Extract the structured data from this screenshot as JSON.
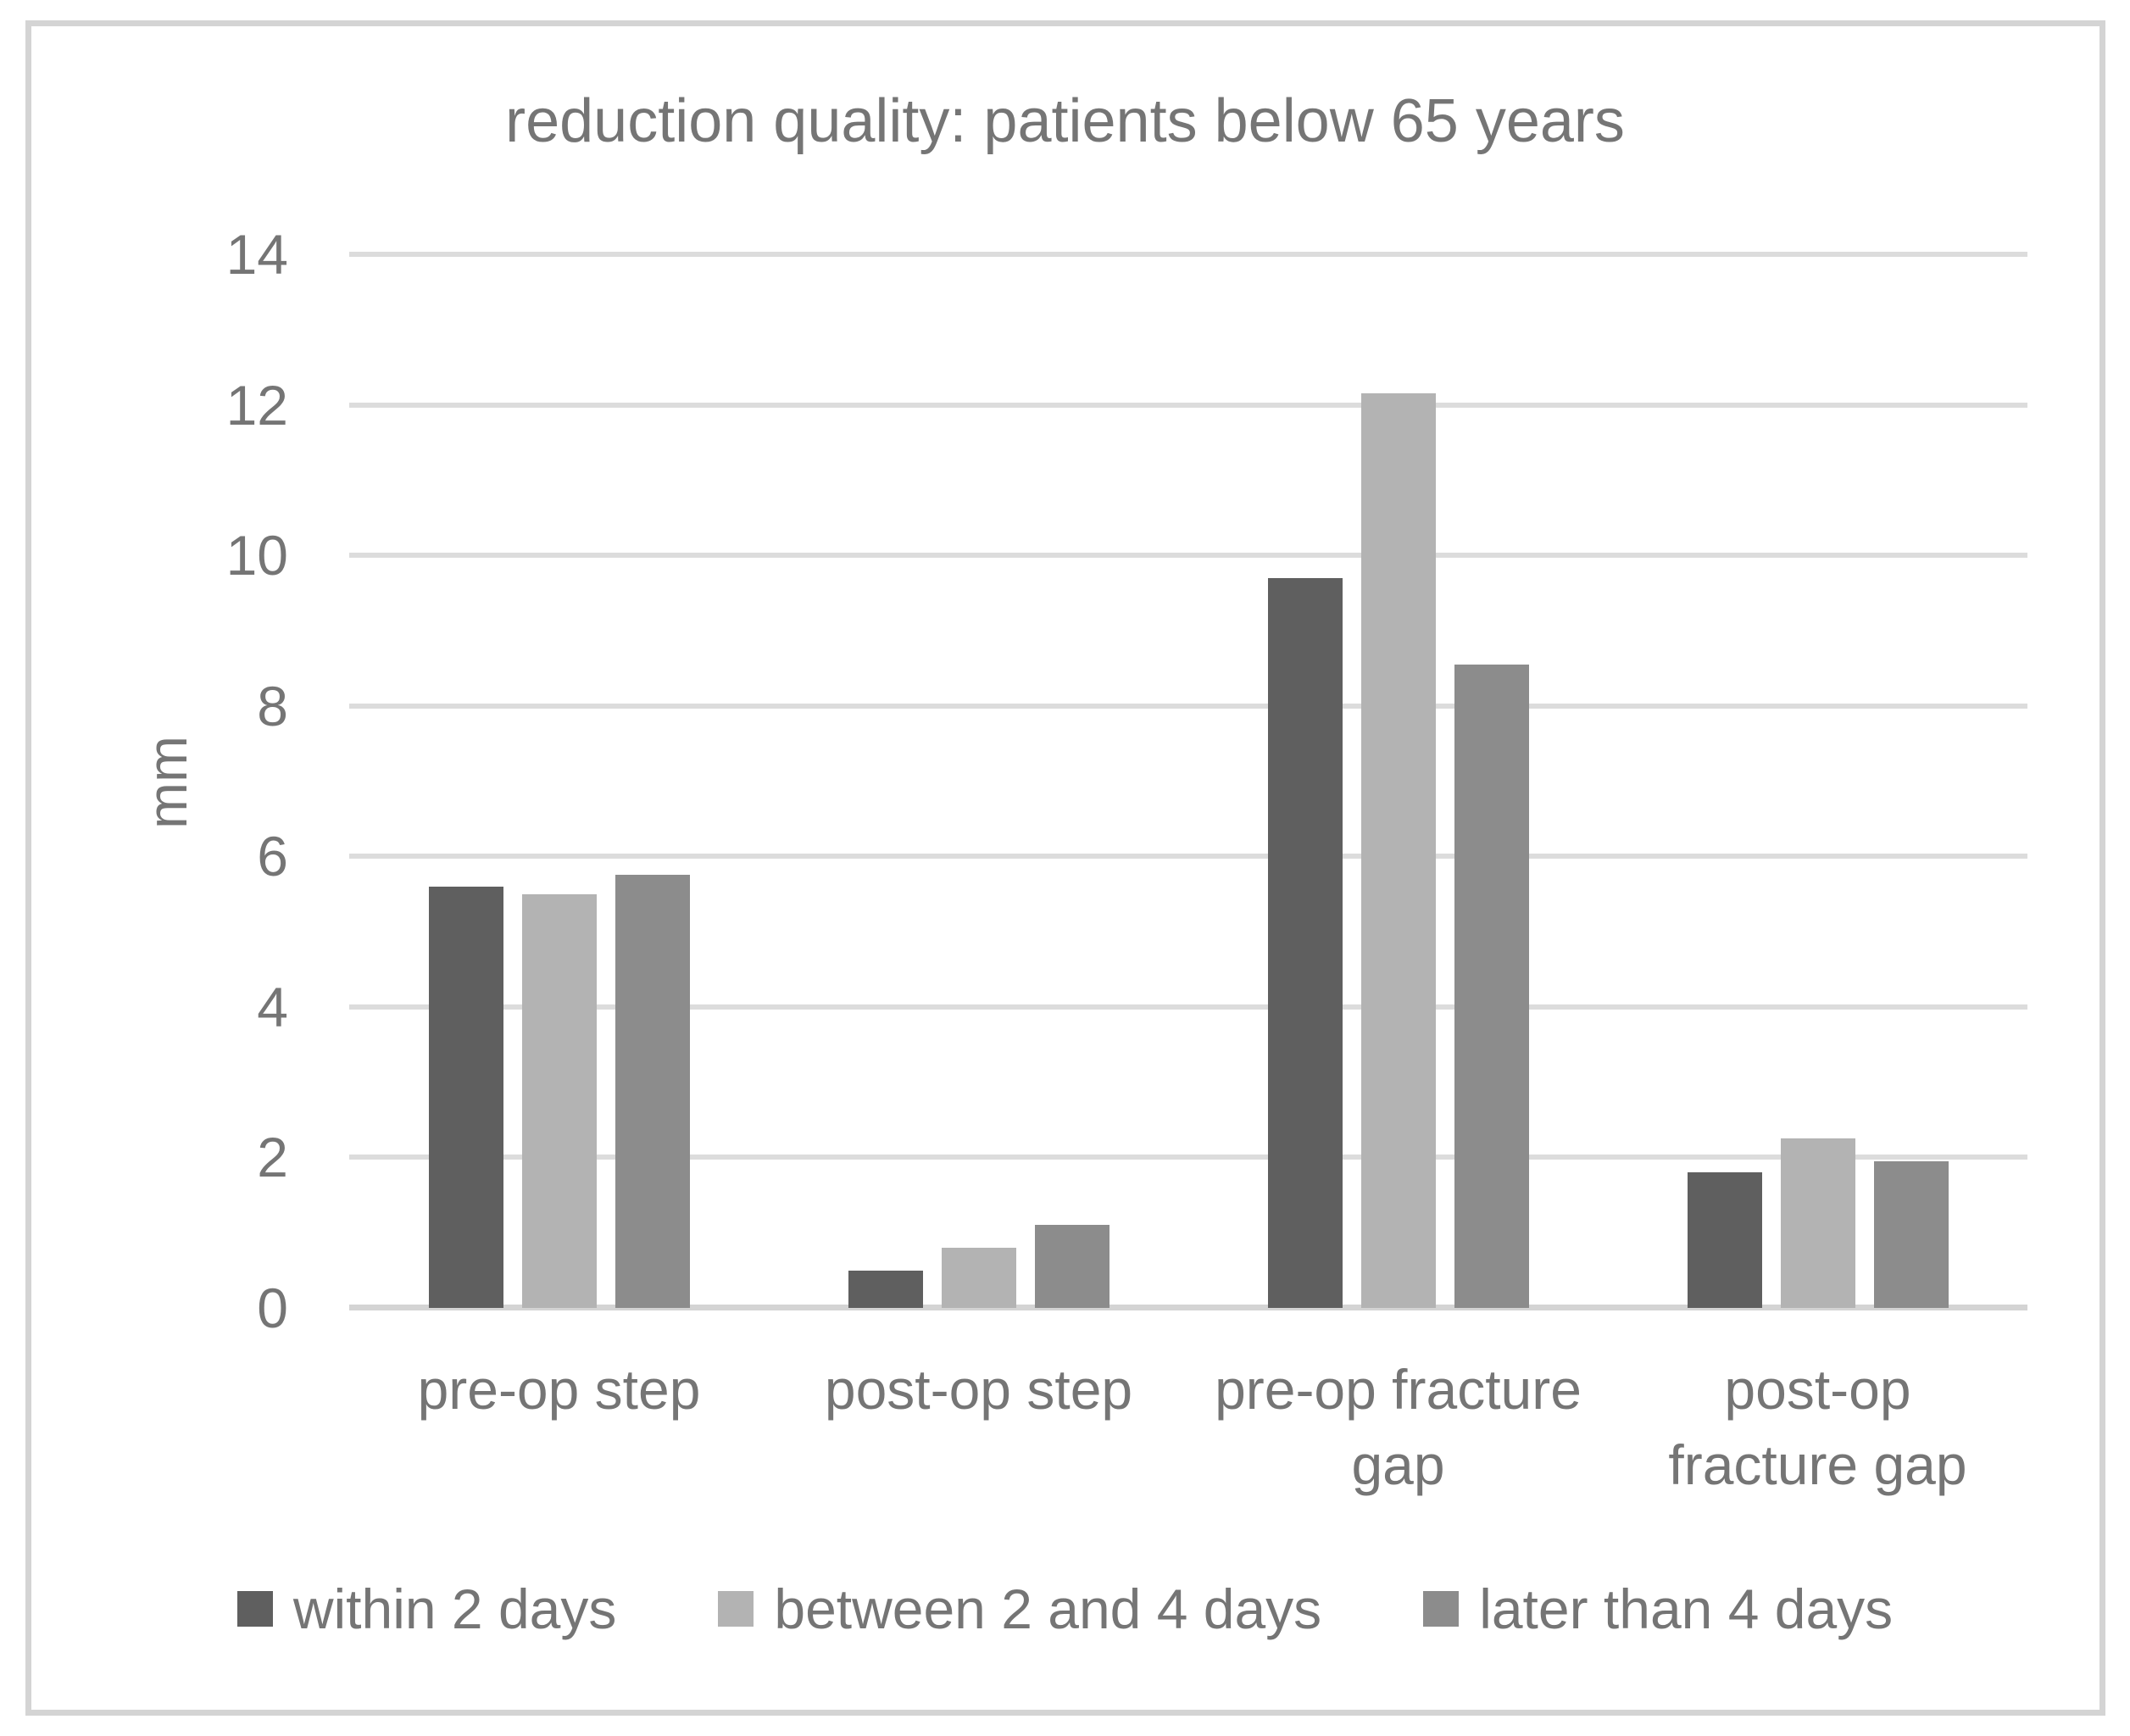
{
  "chart_data": {
    "type": "bar",
    "title": "reduction quality: patients below 65 years",
    "xlabel": "",
    "ylabel": "mm",
    "ylim": [
      0,
      14
    ],
    "yticks": [
      0,
      2,
      4,
      6,
      8,
      10,
      12,
      14
    ],
    "grid": true,
    "legend_position": "bottom",
    "categories": [
      "pre-op step",
      "post-op step",
      "pre-op fracture gap",
      "post-op fracture gap"
    ],
    "series": [
      {
        "name": "within 2 days",
        "color": "#5f5f5f",
        "values": [
          5.6,
          0.5,
          9.7,
          1.8
        ]
      },
      {
        "name": "between 2 and 4 days",
        "color": "#b3b3b3",
        "values": [
          5.5,
          0.8,
          12.15,
          2.25
        ]
      },
      {
        "name": "later than 4 days",
        "color": "#8c8c8c",
        "values": [
          5.75,
          1.1,
          8.55,
          1.95
        ]
      }
    ],
    "colors": {
      "text": "#757575",
      "gridline": "#dcdcdc",
      "axis_line": "#d4d4d4",
      "frame_border": "#d4d4d4",
      "background": "#ffffff"
    }
  }
}
